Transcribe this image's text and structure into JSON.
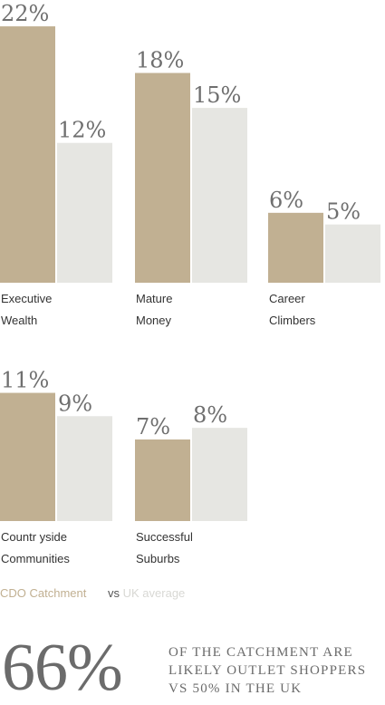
{
  "chart_data": {
    "type": "bar",
    "categories": [
      {
        "line1": "Executive",
        "line2": "Wealth"
      },
      {
        "line1": "Mature",
        "line2": "Money"
      },
      {
        "line1": "Career",
        "line2": "Climbers"
      },
      {
        "line1": "Countr yside",
        "line2": "Communities"
      },
      {
        "line1": "Successful",
        "line2": "Suburbs"
      }
    ],
    "series": [
      {
        "name": "CDO Catchment",
        "values": [
          22,
          18,
          6,
          11,
          7
        ],
        "labels": [
          "22%",
          "18%",
          "6%",
          "11%",
          "7%"
        ]
      },
      {
        "name": "UK average",
        "values": [
          12,
          15,
          5,
          9,
          8
        ],
        "labels": [
          "12%",
          "15%",
          "5%",
          "9%",
          "8%"
        ]
      }
    ],
    "title": "",
    "xlabel": "",
    "ylabel": "",
    "grid": false,
    "colors": {
      "catchment": "#c1b092",
      "uk": "#e6e6e2"
    }
  },
  "legend": {
    "catchment": "CDO Catchment",
    "vs": "vs",
    "uk": "UK average"
  },
  "footer": {
    "stat": "66%",
    "lines": [
      "OF THE CATCHMENT ARE",
      "LIKELY OUTLET SHOPPERS",
      "VS 50% IN THE UK"
    ]
  }
}
